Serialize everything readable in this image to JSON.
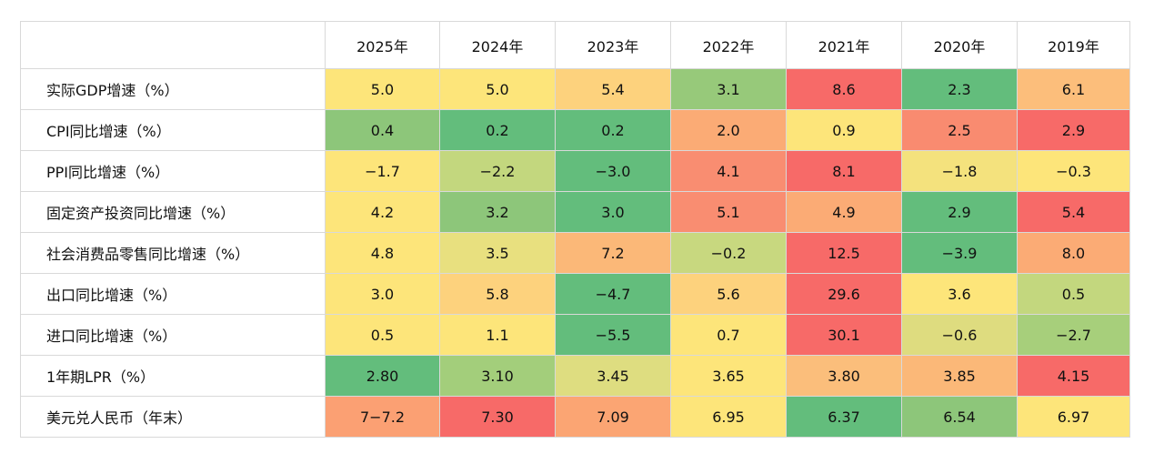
{
  "chart_data": {
    "type": "table",
    "columns": [
      "2025年",
      "2024年",
      "2023年",
      "2022年",
      "2021年",
      "2020年",
      "2019年"
    ],
    "rows": [
      {
        "label": "实际GDP增速（%）",
        "values": [
          "5.0",
          "5.0",
          "5.4",
          "3.1",
          "8.6",
          "2.3",
          "6.1"
        ],
        "colors": [
          "#fde57a",
          "#fde57a",
          "#fdd27d",
          "#97c97a",
          "#f76a68",
          "#63bd7c",
          "#fcbe7b"
        ]
      },
      {
        "label": "CPI同比增速（%）",
        "values": [
          "0.4",
          "0.2",
          "0.2",
          "2.0",
          "0.9",
          "2.5",
          "2.9"
        ],
        "colors": [
          "#8dc67a",
          "#63bd7c",
          "#63bd7c",
          "#fbab75",
          "#fde57a",
          "#f98b70",
          "#f76a68"
        ]
      },
      {
        "label": "PPI同比增速（%）",
        "values": [
          "−1.7",
          "−2.2",
          "−3.0",
          "4.1",
          "8.1",
          "−1.8",
          "−0.3"
        ],
        "colors": [
          "#fde57a",
          "#c3d77e",
          "#63bd7c",
          "#f98d71",
          "#f76a68",
          "#f4e27d",
          "#fde57a"
        ]
      },
      {
        "label": "固定资产投资同比增速（%）",
        "values": [
          "4.2",
          "3.2",
          "3.0",
          "5.1",
          "4.9",
          "2.9",
          "5.4"
        ],
        "colors": [
          "#fde57a",
          "#8dc67a",
          "#63bd7c",
          "#f98d71",
          "#fbab75",
          "#63bd7c",
          "#f76a68"
        ]
      },
      {
        "label": "社会消费品零售同比增速（%）",
        "values": [
          "4.8",
          "3.5",
          "7.2",
          "−0.2",
          "12.5",
          "−3.9",
          "8.0"
        ],
        "colors": [
          "#fde57a",
          "#e8e07f",
          "#fbb878",
          "#c8d87f",
          "#f76a68",
          "#63bd7c",
          "#fbab75"
        ]
      },
      {
        "label": "出口同比增速（%）",
        "values": [
          "3.0",
          "5.8",
          "−4.7",
          "5.6",
          "29.6",
          "3.6",
          "0.5"
        ],
        "colors": [
          "#fde57a",
          "#fdd27d",
          "#63bd7c",
          "#fdd27d",
          "#f76a68",
          "#fde57a",
          "#c3d77e"
        ]
      },
      {
        "label": "进口同比增速（%）",
        "values": [
          "0.5",
          "1.1",
          "−5.5",
          "0.7",
          "30.1",
          "−0.6",
          "−2.7"
        ],
        "colors": [
          "#fde57a",
          "#fde57a",
          "#63bd7c",
          "#fde57a",
          "#f76a68",
          "#dedc7f",
          "#a7cf7b"
        ]
      },
      {
        "label": "1年期LPR（%）",
        "values": [
          "2.80",
          "3.10",
          "3.45",
          "3.65",
          "3.80",
          "3.85",
          "4.15"
        ],
        "colors": [
          "#63bd7c",
          "#a3ce7b",
          "#dedd80",
          "#fde57a",
          "#fbbe7b",
          "#fbb878",
          "#f76a68"
        ]
      },
      {
        "label": "美元兑人民币（年末）",
        "values": [
          "7−7.2",
          "7.30",
          "7.09",
          "6.95",
          "6.37",
          "6.54",
          "6.97"
        ],
        "colors": [
          "#fba073",
          "#f76a68",
          "#fba573",
          "#fde57a",
          "#63bd7c",
          "#8dc67a",
          "#fde57a"
        ]
      }
    ]
  }
}
